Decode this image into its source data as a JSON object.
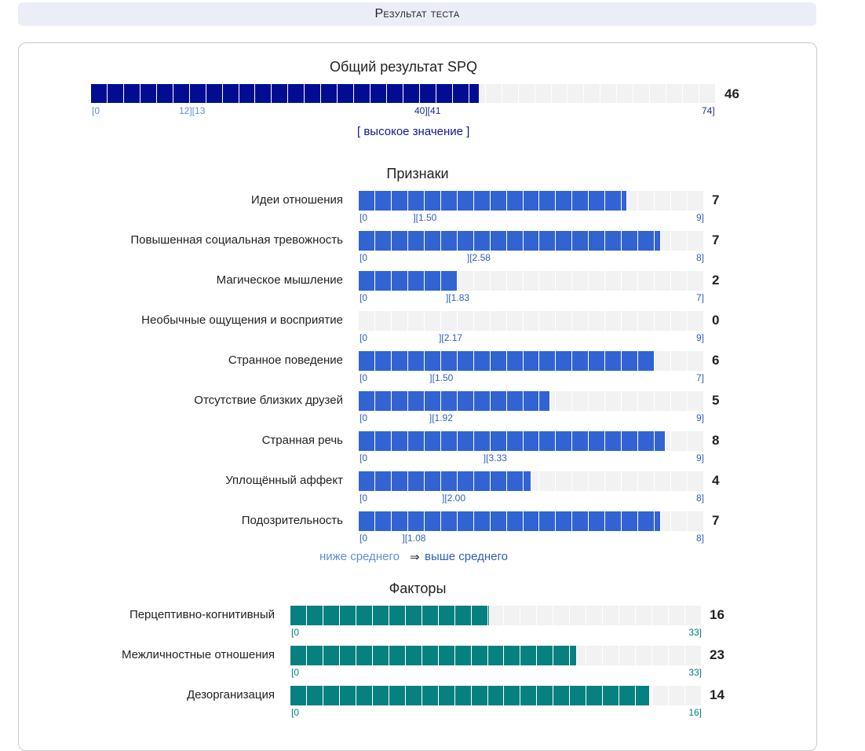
{
  "header": {
    "title": "Результат теста"
  },
  "overall": {
    "title": "Общий результат SPQ",
    "score": "46",
    "value": 46,
    "max": 74,
    "ranges": [
      {
        "text": "[0",
        "tone": "light"
      },
      {
        "text": "12][13",
        "tone": "light"
      },
      {
        "text": "40][41",
        "tone": "dark"
      },
      {
        "text": "74]",
        "tone": "dark"
      }
    ],
    "note": "[ высокое значение ]"
  },
  "signs": {
    "title": "Признаки",
    "items": [
      {
        "label": "Идеи отношения",
        "score": "7",
        "value": 7,
        "max": 9,
        "min_label": "[0",
        "mid_label": "][1.50",
        "max_label": "9]"
      },
      {
        "label": "Повышенная социальная тревожность",
        "score": "7",
        "value": 7,
        "max": 8,
        "min_label": "[0",
        "mid_label": "][2.58",
        "max_label": "8]"
      },
      {
        "label": "Магическое мышление",
        "score": "2",
        "value": 2,
        "max": 7,
        "min_label": "[0",
        "mid_label": "][1.83",
        "max_label": "7]"
      },
      {
        "label": "Необычные ощущения и восприятие",
        "score": "0",
        "value": 0,
        "max": 9,
        "min_label": "[0",
        "mid_label": "][2.17",
        "max_label": "9]"
      },
      {
        "label": "Странное поведение",
        "score": "6",
        "value": 6,
        "max": 7,
        "min_label": "[0",
        "mid_label": "][1.50",
        "max_label": "7]"
      },
      {
        "label": "Отсутствие близких друзей",
        "score": "5",
        "value": 5,
        "max": 9,
        "min_label": "[0",
        "mid_label": "][1.92",
        "max_label": "9]"
      },
      {
        "label": "Странная речь",
        "score": "8",
        "value": 8,
        "max": 9,
        "min_label": "[0",
        "mid_label": "][3.33",
        "max_label": "9]"
      },
      {
        "label": "Уплощённый аффект",
        "score": "4",
        "value": 4,
        "max": 8,
        "min_label": "[0",
        "mid_label": "][2.00",
        "max_label": "8]"
      },
      {
        "label": "Подозрительность",
        "score": "7",
        "value": 7,
        "max": 8,
        "min_label": "[0",
        "mid_label": "][1.08",
        "max_label": "8]"
      }
    ],
    "legend": {
      "low": "ниже среднего",
      "arrow": "⇒",
      "high": "выше среднего"
    }
  },
  "factors": {
    "title": "Факторы",
    "items": [
      {
        "label": "Перцептивно-когнитивный",
        "score": "16",
        "value": 16,
        "max": 33,
        "min_label": "[0",
        "max_label": "33]"
      },
      {
        "label": "Межличностные отношения",
        "score": "23",
        "value": 23,
        "max": 33,
        "min_label": "[0",
        "max_label": "33]"
      },
      {
        "label": "Дезорганизация",
        "score": "14",
        "value": 14,
        "max": 16,
        "min_label": "[0",
        "max_label": "16]"
      }
    ]
  },
  "colors": {
    "navy": "#000c91",
    "blue": "#3164d2",
    "teal": "#068180",
    "empty": "#f2f2f2"
  }
}
